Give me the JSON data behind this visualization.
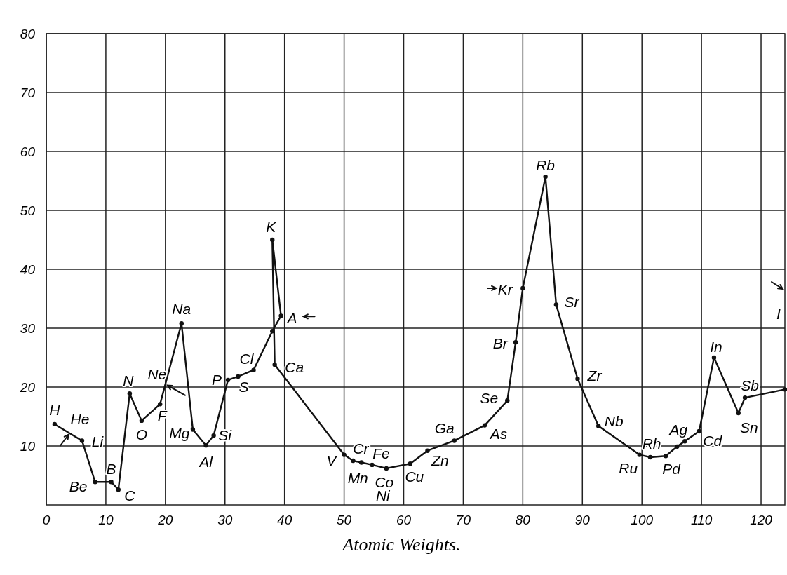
{
  "chart_data": {
    "type": "line",
    "xlabel": "Atomic Weights.",
    "x": [
      1.4,
      6.0,
      8.2,
      10.9,
      12.1,
      14.0,
      16.0,
      19.1,
      22.7,
      24.6,
      26.8,
      28.1,
      30.5,
      32.2,
      34.8,
      37.95,
      39.4,
      37.95,
      38.35,
      50.0,
      51.5,
      52.9,
      54.7,
      57.1,
      61.1,
      64.0,
      68.5,
      73.6,
      77.4,
      78.8,
      80.0,
      83.8,
      85.6,
      89.2,
      92.7,
      99.6,
      101.4,
      104.0,
      105.9,
      107.2,
      109.6,
      112.1,
      116.2,
      117.3,
      124
    ],
    "series": [
      {
        "color": "#111111",
        "values": [
          13.7,
          10.9,
          3.9,
          3.9,
          2.6,
          18.9,
          14.3,
          17.1,
          30.8,
          12.8,
          10.1,
          11.8,
          21.2,
          21.8,
          22.9,
          29.5,
          32.1,
          45.0,
          23.8,
          8.5,
          7.5,
          7.2,
          6.8,
          6.2,
          7.0,
          9.2,
          10.9,
          13.5,
          17.7,
          27.6,
          36.8,
          55.7,
          34.0,
          21.4,
          13.4,
          8.5,
          8.1,
          8.3,
          9.9,
          10.8,
          12.5,
          25.0,
          15.6,
          18.2,
          19.6
        ]
      }
    ],
    "xlim": [
      0,
      124
    ],
    "xticks": [
      0,
      10,
      20,
      30,
      40,
      50,
      60,
      70,
      80,
      90,
      100,
      110,
      120
    ],
    "ylim": [
      0,
      80
    ],
    "yticks": [
      10,
      20,
      30,
      40,
      50,
      60,
      70,
      80
    ],
    "grid": true,
    "marker": "circle",
    "line_style": "solid",
    "annotations": [
      {
        "text": "H",
        "x": 1.4,
        "y": 13.7
      },
      {
        "text": "He",
        "x": 4.0,
        "y": 12.2
      },
      {
        "text": "Li",
        "x": 6.0,
        "y": 10.9
      },
      {
        "text": "Be",
        "x": 8.2,
        "y": 3.9
      },
      {
        "text": "B",
        "x": 10.9,
        "y": 3.9
      },
      {
        "text": "C",
        "x": 12.1,
        "y": 2.6
      },
      {
        "text": "N",
        "x": 14.0,
        "y": 18.9
      },
      {
        "text": "O",
        "x": 16.0,
        "y": 14.3
      },
      {
        "text": "F",
        "x": 19.1,
        "y": 17.1
      },
      {
        "text": "Ne",
        "x": 20.0,
        "y": 20.4
      },
      {
        "text": "Na",
        "x": 22.7,
        "y": 30.8
      },
      {
        "text": "Mg",
        "x": 24.6,
        "y": 12.8
      },
      {
        "text": "Al",
        "x": 26.8,
        "y": 10.1
      },
      {
        "text": "Si",
        "x": 28.1,
        "y": 11.8
      },
      {
        "text": "P",
        "x": 30.5,
        "y": 21.2
      },
      {
        "text": "S",
        "x": 32.2,
        "y": 21.8
      },
      {
        "text": "Cl",
        "x": 34.8,
        "y": 22.9
      },
      {
        "text": "K",
        "x": 37.95,
        "y": 45.0
      },
      {
        "text": "A",
        "x": 39.4,
        "y": 32.1
      },
      {
        "text": "Ca",
        "x": 38.35,
        "y": 23.8
      },
      {
        "text": "V",
        "x": 50.0,
        "y": 8.5
      },
      {
        "text": "Cr",
        "x": 51.5,
        "y": 7.5
      },
      {
        "text": "Mn",
        "x": 52.9,
        "y": 7.2
      },
      {
        "text": "Fe",
        "x": 54.7,
        "y": 6.8
      },
      {
        "text": "Co",
        "x": 57.1,
        "y": 6.2
      },
      {
        "text": "Ni",
        "x": 57.1,
        "y": 6.2
      },
      {
        "text": "Cu",
        "x": 61.1,
        "y": 7.0
      },
      {
        "text": "Zn",
        "x": 64.0,
        "y": 9.2
      },
      {
        "text": "Ga",
        "x": 68.5,
        "y": 10.9
      },
      {
        "text": "As",
        "x": 73.6,
        "y": 13.5
      },
      {
        "text": "Se",
        "x": 77.4,
        "y": 17.7
      },
      {
        "text": "Br",
        "x": 78.8,
        "y": 27.6
      },
      {
        "text": "Kr",
        "x": 80.0,
        "y": 36.8
      },
      {
        "text": "Rb",
        "x": 83.8,
        "y": 55.7
      },
      {
        "text": "Sr",
        "x": 85.6,
        "y": 34.0
      },
      {
        "text": "Zr",
        "x": 89.2,
        "y": 21.4
      },
      {
        "text": "Nb",
        "x": 92.7,
        "y": 13.4
      },
      {
        "text": "Ru",
        "x": 99.6,
        "y": 8.5
      },
      {
        "text": "Rh",
        "x": 101.4,
        "y": 8.1
      },
      {
        "text": "Pd",
        "x": 104.0,
        "y": 8.3
      },
      {
        "text": "Ag",
        "x": 107.2,
        "y": 10.8
      },
      {
        "text": "Cd",
        "x": 109.6,
        "y": 12.5
      },
      {
        "text": "In",
        "x": 112.1,
        "y": 25.0
      },
      {
        "text": "Sn",
        "x": 116.2,
        "y": 15.6
      },
      {
        "text": "Sb",
        "x": 117.3,
        "y": 18.2
      },
      "I"
    ]
  }
}
